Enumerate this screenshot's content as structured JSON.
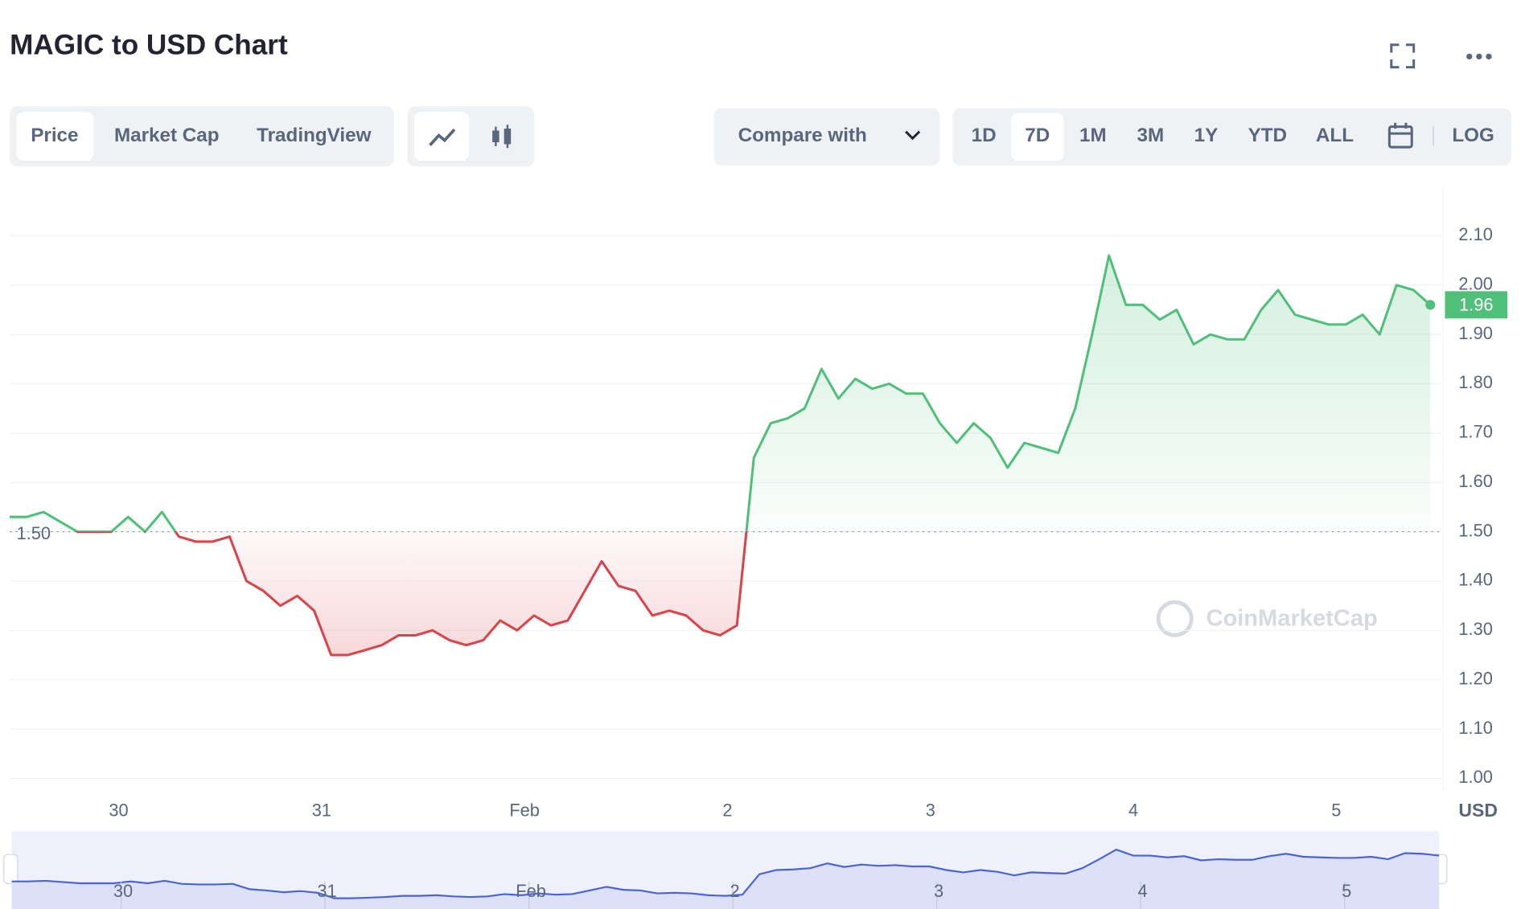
{
  "header": {
    "title": "MAGIC to USD Chart"
  },
  "tabs": [
    "Price",
    "Market Cap",
    "TradingView"
  ],
  "compare": "Compare with",
  "ranges": [
    "1D",
    "7D",
    "1M",
    "3M",
    "1Y",
    "YTD",
    "ALL"
  ],
  "log": "LOG",
  "currency": "USD",
  "watermark": "CoinMarketCap",
  "chart_data": {
    "type": "line",
    "xlim": [
      0,
      84
    ],
    "xticks": [
      {
        "value": 6.44,
        "label": "30"
      },
      {
        "value": 18.44,
        "label": "31"
      },
      {
        "value": 30.44,
        "label": "Feb"
      },
      {
        "value": 42.44,
        "label": "2"
      },
      {
        "value": 54.44,
        "label": "3"
      },
      {
        "value": 66.44,
        "label": "4"
      },
      {
        "value": 78.44,
        "label": "5"
      }
    ],
    "ylim": [
      0.98,
      2.2
    ],
    "yticks": [
      {
        "value": 1.0,
        "label": "1.00"
      },
      {
        "value": 1.1,
        "label": "1.10"
      },
      {
        "value": 1.2,
        "label": "1.20"
      },
      {
        "value": 1.3,
        "label": "1.30"
      },
      {
        "value": 1.4,
        "label": "1.40"
      },
      {
        "value": 1.5,
        "label": "1.50"
      },
      {
        "value": 1.6,
        "label": "1.60"
      },
      {
        "value": 1.7,
        "label": "1.70"
      },
      {
        "value": 1.8,
        "label": "1.80"
      },
      {
        "value": 1.9,
        "label": "1.90"
      },
      {
        "value": 2.0,
        "label": "2.00"
      },
      {
        "value": 2.1,
        "label": "2.10"
      }
    ],
    "baseline": {
      "value": 1.5,
      "label": "1.50"
    },
    "grid": true,
    "series": [
      {
        "color_up": "#4fbf7a",
        "color_down": "#d9434a",
        "values": [
          1.53,
          1.53,
          1.54,
          1.52,
          1.5,
          1.5,
          1.5,
          1.53,
          1.5,
          1.54,
          1.49,
          1.48,
          1.48,
          1.49,
          1.4,
          1.38,
          1.35,
          1.37,
          1.34,
          1.25,
          1.25,
          1.26,
          1.27,
          1.29,
          1.29,
          1.3,
          1.28,
          1.27,
          1.28,
          1.32,
          1.3,
          1.33,
          1.31,
          1.32,
          1.38,
          1.44,
          1.39,
          1.38,
          1.33,
          1.34,
          1.33,
          1.3,
          1.29,
          1.31,
          1.65,
          1.72,
          1.73,
          1.75,
          1.83,
          1.77,
          1.81,
          1.79,
          1.8,
          1.78,
          1.78,
          1.72,
          1.68,
          1.72,
          1.69,
          1.63,
          1.68,
          1.67,
          1.66,
          1.75,
          1.9,
          2.06,
          1.96,
          1.96,
          1.93,
          1.95,
          1.88,
          1.9,
          1.89,
          1.89,
          1.95,
          1.99,
          1.94,
          1.93,
          1.92,
          1.92,
          1.94,
          1.9,
          2.0,
          1.99,
          1.96
        ]
      }
    ]
  }
}
